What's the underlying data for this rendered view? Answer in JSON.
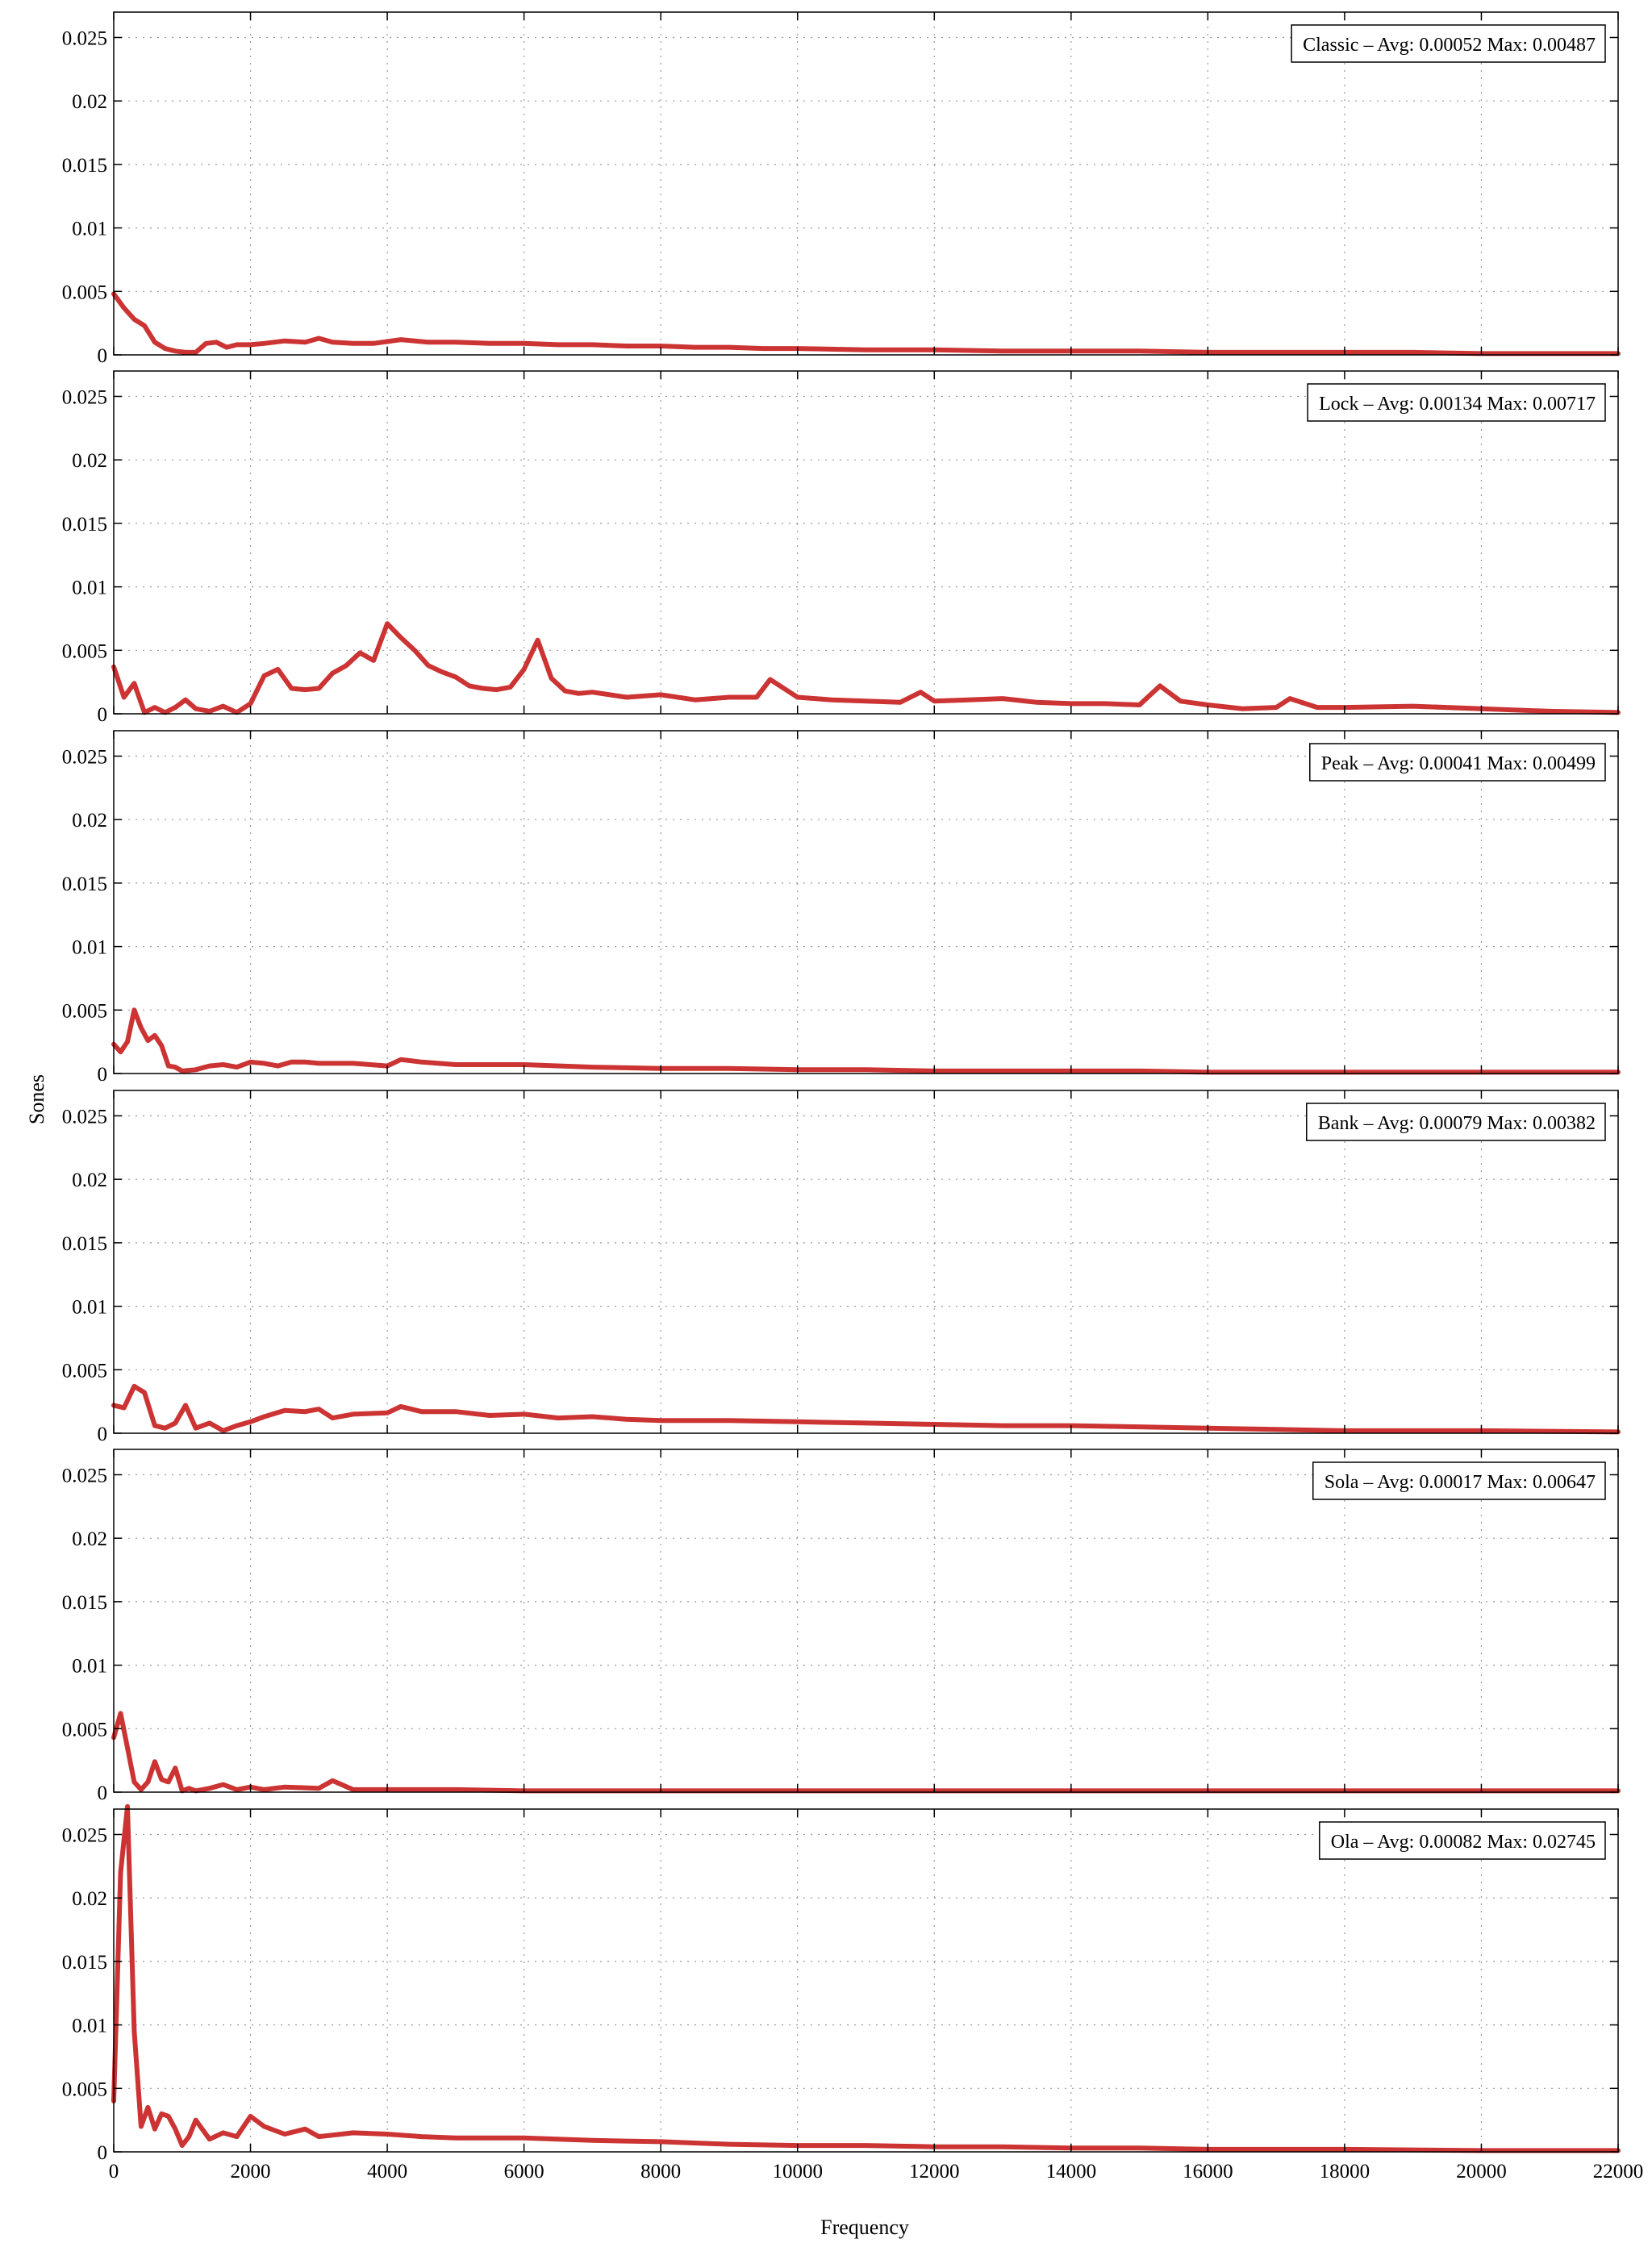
{
  "chart_data": {
    "type": "line",
    "xlabel": "Frequency",
    "ylabel": "Sones",
    "xlim": [
      0,
      22000
    ],
    "ylim": [
      0,
      0.027
    ],
    "x_ticks": [
      0,
      2000,
      4000,
      6000,
      8000,
      10000,
      12000,
      14000,
      16000,
      18000,
      20000,
      22000
    ],
    "x_tick_labels": [
      "0",
      "2000",
      "4000",
      "6000",
      "8000",
      "10000",
      "12000",
      "14000",
      "16000",
      "18000",
      "20000",
      "22000"
    ],
    "y_ticks": [
      0,
      0.005,
      0.01,
      0.015,
      0.02,
      0.025
    ],
    "y_tick_labels": [
      "0",
      "0.005",
      "0.01",
      "0.015",
      "0.02",
      "0.025"
    ],
    "grid": true,
    "legend_placement": "top-right",
    "line_color": "#cc3333",
    "panels": [
      {
        "legend": "Classic – Avg: 0.00052 Max: 0.00487",
        "x": [
          0,
          150,
          300,
          450,
          600,
          750,
          900,
          1050,
          1200,
          1350,
          1500,
          1650,
          1800,
          2000,
          2200,
          2500,
          2800,
          3000,
          3200,
          3500,
          3800,
          4200,
          4600,
          5000,
          5500,
          6000,
          6500,
          7000,
          7500,
          8000,
          8500,
          9000,
          9500,
          10000,
          11000,
          12000,
          13000,
          14000,
          15000,
          16000,
          17000,
          18000,
          19000,
          20000,
          21000,
          22000
        ],
        "y": [
          0.0048,
          0.0037,
          0.0028,
          0.0023,
          0.001,
          0.0005,
          0.0003,
          0.0002,
          0.0002,
          0.0009,
          0.001,
          0.0006,
          0.0008,
          0.0008,
          0.0009,
          0.0011,
          0.001,
          0.0013,
          0.001,
          0.0009,
          0.0009,
          0.0012,
          0.001,
          0.001,
          0.0009,
          0.0009,
          0.0008,
          0.0008,
          0.0007,
          0.0007,
          0.0006,
          0.0006,
          0.0005,
          0.0005,
          0.0004,
          0.0004,
          0.0003,
          0.0003,
          0.0003,
          0.0002,
          0.0002,
          0.0002,
          0.0002,
          0.0001,
          0.0001,
          0.0001
        ]
      },
      {
        "legend": "Lock – Avg: 0.00134 Max: 0.00717",
        "x": [
          0,
          150,
          300,
          450,
          600,
          750,
          900,
          1050,
          1200,
          1400,
          1600,
          1800,
          2000,
          2200,
          2400,
          2600,
          2800,
          3000,
          3200,
          3400,
          3600,
          3800,
          4000,
          4200,
          4400,
          4600,
          4800,
          5000,
          5200,
          5400,
          5600,
          5800,
          6000,
          6200,
          6400,
          6600,
          6800,
          7000,
          7500,
          8000,
          8500,
          9000,
          9400,
          9600,
          10000,
          10500,
          11000,
          11500,
          11800,
          12000,
          12500,
          13000,
          13500,
          14000,
          14500,
          15000,
          15300,
          15600,
          16000,
          16500,
          17000,
          17200,
          17600,
          18000,
          19000,
          20000,
          21000,
          22000
        ],
        "y": [
          0.0037,
          0.0013,
          0.0024,
          0.0001,
          0.0005,
          0.0001,
          0.0005,
          0.0011,
          0.0004,
          0.0002,
          0.0006,
          0.0001,
          0.0008,
          0.003,
          0.0035,
          0.002,
          0.0019,
          0.002,
          0.0032,
          0.0038,
          0.0048,
          0.0042,
          0.0071,
          0.006,
          0.005,
          0.0038,
          0.0033,
          0.0029,
          0.0022,
          0.002,
          0.0019,
          0.0021,
          0.0035,
          0.0058,
          0.0028,
          0.0018,
          0.0016,
          0.0017,
          0.0013,
          0.0015,
          0.0011,
          0.0013,
          0.0013,
          0.0027,
          0.0013,
          0.0011,
          0.001,
          0.0009,
          0.0017,
          0.001,
          0.0011,
          0.0012,
          0.0009,
          0.0008,
          0.0008,
          0.0007,
          0.0022,
          0.001,
          0.0007,
          0.0004,
          0.0005,
          0.0012,
          0.0005,
          0.0005,
          0.0006,
          0.0004,
          0.0002,
          0.0001
        ]
      },
      {
        "legend": "Peak – Avg: 0.00041 Max: 0.00499",
        "x": [
          0,
          100,
          200,
          300,
          400,
          500,
          600,
          700,
          800,
          900,
          1000,
          1200,
          1400,
          1600,
          1800,
          2000,
          2200,
          2400,
          2600,
          2800,
          3000,
          3500,
          4000,
          4200,
          4500,
          5000,
          6000,
          7000,
          8000,
          9000,
          10000,
          11000,
          12000,
          13000,
          14000,
          15000,
          16000,
          18000,
          20000,
          22000
        ],
        "y": [
          0.0023,
          0.0017,
          0.0025,
          0.005,
          0.0036,
          0.0026,
          0.003,
          0.0022,
          0.0006,
          0.0005,
          0.0002,
          0.0003,
          0.0006,
          0.0007,
          0.0005,
          0.0009,
          0.0008,
          0.0006,
          0.0009,
          0.0009,
          0.0008,
          0.0008,
          0.0006,
          0.0011,
          0.0009,
          0.0007,
          0.0007,
          0.0005,
          0.0004,
          0.0004,
          0.0003,
          0.0003,
          0.0002,
          0.0002,
          0.0002,
          0.0002,
          0.0001,
          0.0001,
          0.0001,
          0.0001
        ]
      },
      {
        "legend": "Bank – Avg: 0.00079 Max: 0.00382",
        "x": [
          0,
          150,
          300,
          450,
          600,
          750,
          900,
          1050,
          1200,
          1400,
          1600,
          1800,
          2000,
          2200,
          2500,
          2800,
          3000,
          3200,
          3500,
          4000,
          4200,
          4500,
          5000,
          5500,
          6000,
          6500,
          7000,
          7500,
          8000,
          9000,
          10000,
          11000,
          12000,
          13000,
          14000,
          15000,
          16000,
          17000,
          18000,
          20000,
          22000
        ],
        "y": [
          0.0022,
          0.002,
          0.0037,
          0.0032,
          0.0006,
          0.0004,
          0.0008,
          0.0022,
          0.0004,
          0.0008,
          0.0002,
          0.0006,
          0.0009,
          0.0013,
          0.0018,
          0.0017,
          0.0019,
          0.0012,
          0.0015,
          0.0016,
          0.0021,
          0.0017,
          0.0017,
          0.0014,
          0.0015,
          0.0012,
          0.0013,
          0.0011,
          0.001,
          0.001,
          0.0009,
          0.0008,
          0.0007,
          0.0006,
          0.0006,
          0.0005,
          0.0004,
          0.0003,
          0.0002,
          0.0002,
          0.0001
        ]
      },
      {
        "legend": "Sola – Avg: 0.00017 Max: 0.00647",
        "x": [
          0,
          100,
          200,
          300,
          400,
          500,
          600,
          700,
          800,
          900,
          1000,
          1100,
          1200,
          1400,
          1600,
          1800,
          2000,
          2200,
          2500,
          3000,
          3200,
          3500,
          4000,
          5000,
          6000,
          8000,
          10000,
          12000,
          14000,
          16000,
          18000,
          20000,
          22000
        ],
        "y": [
          0.0043,
          0.0062,
          0.0035,
          0.0008,
          0.0002,
          0.0008,
          0.0024,
          0.001,
          0.0008,
          0.0019,
          0.0001,
          0.0003,
          0.0001,
          0.0003,
          0.0006,
          0.0002,
          0.0004,
          0.0002,
          0.0004,
          0.0003,
          0.0009,
          0.0002,
          0.0002,
          0.0002,
          0.0001,
          0.0001,
          0.0001,
          0.0001,
          0.0001,
          0.0001,
          0.0001,
          0.0001,
          0.0001
        ]
      },
      {
        "legend": "Ola – Avg: 0.00082 Max: 0.02745",
        "x": [
          0,
          100,
          200,
          300,
          400,
          500,
          600,
          700,
          800,
          900,
          1000,
          1100,
          1200,
          1400,
          1600,
          1800,
          2000,
          2200,
          2500,
          2800,
          3000,
          3500,
          4000,
          4500,
          5000,
          6000,
          7000,
          8000,
          9000,
          10000,
          11000,
          12000,
          13000,
          14000,
          15000,
          16000,
          18000,
          20000,
          22000
        ],
        "y": [
          0.004,
          0.022,
          0.0272,
          0.0095,
          0.002,
          0.0035,
          0.0018,
          0.003,
          0.0028,
          0.0018,
          0.0005,
          0.0012,
          0.0025,
          0.001,
          0.0015,
          0.0012,
          0.0028,
          0.002,
          0.0014,
          0.0018,
          0.0012,
          0.0015,
          0.0014,
          0.0012,
          0.0011,
          0.0011,
          0.0009,
          0.0008,
          0.0006,
          0.0005,
          0.0005,
          0.0004,
          0.0004,
          0.0003,
          0.0003,
          0.0002,
          0.0002,
          0.0001,
          0.0001
        ]
      }
    ]
  }
}
